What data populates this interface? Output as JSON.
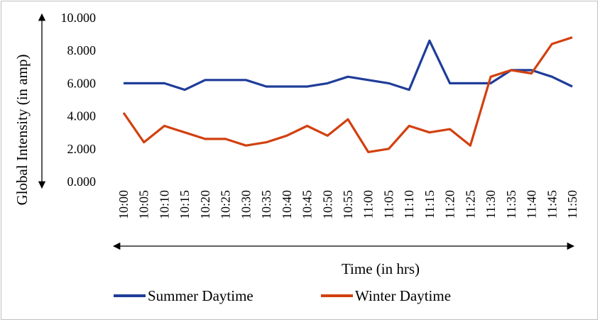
{
  "chart_data": {
    "type": "line",
    "categories": [
      "10:00",
      "10:05",
      "10:10",
      "10:15",
      "10:20",
      "10:25",
      "10:30",
      "10:35",
      "10:40",
      "10:45",
      "10:50",
      "10:55",
      "11:00",
      "11:05",
      "11:10",
      "11:15",
      "11:20",
      "11:25",
      "11:30",
      "11:35",
      "11:40",
      "11:45",
      "11:50"
    ],
    "series": [
      {
        "name": "Summer Daytime",
        "color": "#1f3d99",
        "values": [
          6.0,
          6.0,
          6.0,
          5.6,
          6.2,
          6.2,
          6.2,
          5.8,
          5.8,
          5.8,
          6.0,
          6.4,
          6.2,
          6.0,
          5.6,
          8.6,
          6.0,
          6.0,
          6.0,
          6.8,
          6.8,
          6.4,
          5.8
        ]
      },
      {
        "name": "Winter Daytime",
        "color": "#d2400f",
        "values": [
          4.2,
          2.4,
          3.4,
          3.0,
          2.6,
          2.6,
          2.2,
          2.4,
          2.8,
          3.4,
          2.8,
          3.8,
          1.8,
          2.0,
          3.4,
          3.0,
          3.2,
          2.2,
          6.4,
          6.8,
          6.6,
          8.4,
          8.8
        ]
      }
    ],
    "y_ticks": [
      "0.000",
      "2.000",
      "4.000",
      "6.000",
      "8.000",
      "10.000"
    ],
    "ylim": [
      0,
      10
    ],
    "xlabel": "Time (in hrs)",
    "ylabel": "Global Intensity (in amp)",
    "grid": false,
    "legend": "bottom"
  }
}
